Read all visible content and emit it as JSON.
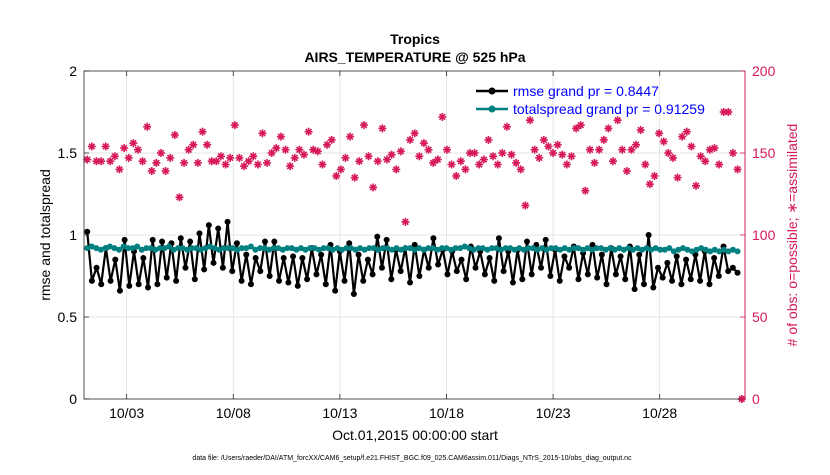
{
  "chart_data": {
    "type": "line",
    "title": "Tropics",
    "subtitle": "AIRS_TEMPERATURE @ 525 hPa",
    "xlabel": "Oct.01,2015 00:00:00 start",
    "ylabel_left": "rmse and totalspread",
    "ylabel_right": "# of obs: o=possible; ∗=assimilated",
    "footer": "data file: /Users/raeder/DAI/ATM_forcXX/CAM6_setup/f.e21.FHIST_BGC.f09_025.CAM6assim.011/Diags_NTrS_2015-10/obs_diag_output.nc",
    "xlim": [
      1.0,
      32.0
    ],
    "ylim_left": [
      0,
      2
    ],
    "ylim_right": [
      0,
      200
    ],
    "x_ticks": [
      3,
      8,
      13,
      18,
      23,
      28
    ],
    "x_tick_labels": [
      "10/03",
      "10/08",
      "10/13",
      "10/18",
      "10/23",
      "10/28"
    ],
    "y_ticks_left": [
      0,
      0.5,
      1,
      1.5,
      2
    ],
    "y_tick_labels_left": [
      "0",
      "0.5",
      "1",
      "1.5",
      "2"
    ],
    "y_ticks_right": [
      0,
      50,
      100,
      150,
      200
    ],
    "y_tick_labels_right": [
      "0",
      "50",
      "100",
      "150",
      "200"
    ],
    "legend_position": "top-right",
    "colors": {
      "rmse": "#000000",
      "spread": "#008080",
      "obs": "#d6195a",
      "grid": "#dcdcdc",
      "legend_text": "#0000ff"
    },
    "series": [
      {
        "name": "rmse grand pr = 0.8447",
        "key": "rmse",
        "axis": "left",
        "style": "line-dot",
        "values": [
          1.02,
          0.72,
          0.8,
          0.7,
          0.92,
          0.72,
          0.85,
          0.66,
          0.97,
          0.69,
          0.9,
          0.7,
          0.86,
          0.68,
          0.97,
          0.7,
          0.96,
          0.74,
          0.95,
          0.72,
          0.98,
          0.8,
          0.96,
          0.73,
          1.01,
          0.79,
          1.06,
          0.83,
          1.04,
          0.8,
          1.08,
          0.78,
          0.95,
          0.72,
          0.88,
          0.7,
          0.86,
          0.78,
          0.96,
          0.75,
          0.96,
          0.72,
          0.86,
          0.71,
          0.87,
          0.69,
          0.86,
          0.73,
          0.92,
          0.76,
          0.88,
          0.7,
          0.94,
          0.66,
          0.9,
          0.72,
          0.95,
          0.64,
          0.88,
          0.72,
          0.85,
          0.76,
          0.99,
          0.8,
          0.97,
          0.73,
          0.91,
          0.78,
          0.92,
          0.71,
          0.94,
          0.75,
          0.91,
          0.8,
          0.98,
          0.82,
          0.91,
          0.76,
          0.9,
          0.78,
          0.85,
          0.73,
          0.93,
          0.8,
          0.9,
          0.76,
          0.86,
          0.72,
          0.98,
          0.78,
          0.9,
          0.71,
          0.91,
          0.73,
          0.96,
          0.76,
          0.94,
          0.8,
          0.97,
          0.75,
          0.91,
          0.72,
          0.87,
          0.8,
          0.93,
          0.73,
          0.89,
          0.76,
          0.94,
          0.74,
          0.88,
          0.7,
          0.92,
          0.76,
          0.87,
          0.73,
          0.93,
          0.67,
          0.88,
          0.7,
          1.0,
          0.68,
          0.8,
          0.74,
          0.83,
          0.72,
          0.87,
          0.7,
          0.85,
          0.73,
          0.88,
          0.72,
          0.9,
          0.7,
          0.86,
          0.75,
          0.93,
          0.78,
          0.8,
          0.77
        ]
      },
      {
        "name": "totalspread grand pr = 0.91259",
        "key": "spread",
        "axis": "left",
        "style": "line-dot",
        "values": [
          0.92,
          0.93,
          0.92,
          0.91,
          0.92,
          0.93,
          0.92,
          0.91,
          0.93,
          0.92,
          0.92,
          0.93,
          0.91,
          0.92,
          0.92,
          0.91,
          0.92,
          0.92,
          0.93,
          0.91,
          0.92,
          0.92,
          0.91,
          0.92,
          0.92,
          0.91,
          0.92,
          0.93,
          0.92,
          0.91,
          0.92,
          0.92,
          0.92,
          0.91,
          0.92,
          0.92,
          0.93,
          0.91,
          0.92,
          0.92,
          0.91,
          0.92,
          0.92,
          0.91,
          0.92,
          0.92,
          0.91,
          0.92,
          0.91,
          0.92,
          0.92,
          0.91,
          0.92,
          0.92,
          0.91,
          0.92,
          0.91,
          0.92,
          0.92,
          0.91,
          0.92,
          0.91,
          0.92,
          0.92,
          0.91,
          0.92,
          0.92,
          0.91,
          0.92,
          0.91,
          0.92,
          0.92,
          0.91,
          0.92,
          0.91,
          0.92,
          0.92,
          0.91,
          0.92,
          0.92,
          0.91,
          0.92,
          0.92,
          0.93,
          0.92,
          0.91,
          0.92,
          0.92,
          0.91,
          0.92,
          0.92,
          0.91,
          0.92,
          0.92,
          0.91,
          0.92,
          0.91,
          0.92,
          0.92,
          0.91,
          0.92,
          0.91,
          0.92,
          0.92,
          0.91,
          0.92,
          0.91,
          0.92,
          0.92,
          0.91,
          0.92,
          0.91,
          0.92,
          0.92,
          0.91,
          0.92,
          0.91,
          0.92,
          0.91,
          0.92,
          0.91,
          0.92,
          0.91,
          0.92,
          0.91,
          0.92,
          0.91,
          0.91,
          0.92,
          0.9,
          0.91,
          0.92,
          0.91,
          0.9,
          0.91,
          0.92,
          0.91,
          0.9,
          0.91,
          0.9,
          0.91,
          0.9,
          0.91,
          0.9
        ]
      },
      {
        "name": "# of obs assimilated",
        "key": "obs",
        "axis": "right",
        "style": "asterisk",
        "values": [
          146,
          154,
          145,
          145,
          154,
          145,
          148,
          140,
          153,
          147,
          156,
          152,
          145,
          166,
          139,
          144,
          150,
          139,
          147,
          161,
          123,
          144,
          152,
          155,
          144,
          163,
          155,
          145,
          145,
          148,
          143,
          147,
          167,
          147,
          142,
          145,
          148,
          143,
          162,
          144,
          150,
          153,
          160,
          152,
          142,
          147,
          152,
          149,
          163,
          152,
          151,
          143,
          155,
          158,
          136,
          140,
          147,
          160,
          135,
          145,
          167,
          148,
          129,
          145,
          165,
          146,
          149,
          140,
          151,
          108,
          158,
          162,
          148,
          156,
          152,
          144,
          146,
          172,
          152,
          143,
          136,
          145,
          140,
          150,
          150,
          143,
          146,
          158,
          148,
          143,
          150,
          166,
          149,
          144,
          140,
          118,
          170,
          152,
          147,
          158,
          154,
          150,
          155,
          149,
          143,
          148,
          165,
          167,
          127,
          152,
          144,
          152,
          158,
          165,
          145,
          170,
          152,
          139,
          152,
          155,
          164,
          143,
          131,
          136,
          162,
          157,
          150,
          147,
          135,
          160,
          163,
          154,
          130,
          148,
          145,
          152,
          153,
          143,
          175,
          175,
          150,
          140
        ]
      }
    ],
    "rmse_series": "rmse grand pr = 0.8447",
    "spread_series": "totalspread grand pr = 0.91259"
  }
}
